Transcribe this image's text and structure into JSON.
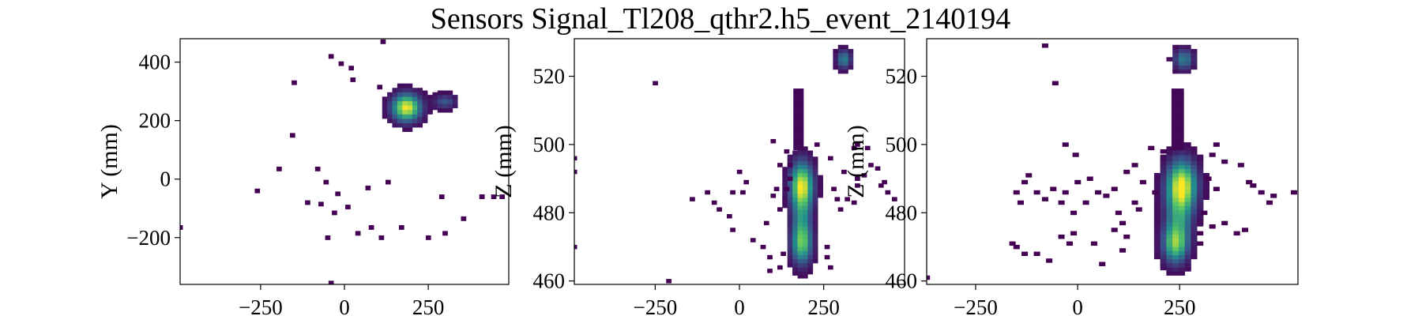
{
  "figure": {
    "title": "Sensors Signal_Tl208_qthr2.h5_event_2140194"
  },
  "colors": {
    "cmap": [
      "#440154",
      "#3b528b",
      "#21918c",
      "#5ec962",
      "#fde725"
    ],
    "frame": "#000000"
  },
  "chart_data": [
    {
      "type": "heatmap",
      "title": "",
      "xlabel": "",
      "ylabel": "Y (mm)",
      "xlim": [
        -490,
        490
      ],
      "ylim": [
        -360,
        480
      ],
      "xticks": [
        -250,
        0,
        250
      ],
      "yticks": [
        -200,
        0,
        200,
        400
      ],
      "cell_size": [
        15,
        15
      ],
      "grid": false,
      "clusters": [
        {
          "x": 185,
          "y": 245,
          "sx": 28,
          "sy": 30,
          "peak": 1.0
        },
        {
          "x": 300,
          "y": 265,
          "sx": 22,
          "sy": 16,
          "peak": 0.28
        }
      ],
      "cells": [
        [
          115,
          470
        ],
        [
          -40,
          420
        ],
        [
          -10,
          395
        ],
        [
          20,
          380
        ],
        [
          -150,
          330
        ],
        [
          25,
          340
        ],
        [
          105,
          315
        ],
        [
          -155,
          150
        ],
        [
          -260,
          -40
        ],
        [
          -195,
          35
        ],
        [
          -80,
          35
        ],
        [
          -55,
          -10
        ],
        [
          -20,
          -50
        ],
        [
          -70,
          -85
        ],
        [
          -110,
          -80
        ],
        [
          -30,
          -115
        ],
        [
          10,
          -95
        ],
        [
          70,
          -30
        ],
        [
          130,
          -10
        ],
        [
          170,
          -165
        ],
        [
          290,
          -60
        ],
        [
          355,
          -135
        ],
        [
          410,
          -60
        ],
        [
          445,
          -60
        ],
        [
          410,
          -60
        ],
        [
          470,
          -60
        ],
        [
          -490,
          -165
        ],
        [
          40,
          -185
        ],
        [
          -50,
          -200
        ],
        [
          80,
          -165
        ],
        [
          110,
          -200
        ],
        [
          250,
          -200
        ],
        [
          300,
          -185
        ],
        [
          -40,
          -355
        ]
      ]
    },
    {
      "type": "heatmap",
      "title": "",
      "xlabel": "",
      "ylabel": "Z (mm)",
      "xlim": [
        -490,
        490
      ],
      "ylim": [
        459,
        531
      ],
      "xticks": [
        -250,
        0,
        250
      ],
      "yticks": [
        460,
        480,
        500,
        520
      ],
      "cell_size": [
        15,
        1.2
      ],
      "grid": false,
      "clusters": [
        {
          "x": 185,
          "y": 488,
          "sx": 22,
          "sy": 4.5,
          "peak": 0.95
        },
        {
          "x": 185,
          "y": 471,
          "sx": 20,
          "sy": 4.0,
          "peak": 0.7
        },
        {
          "x": 185,
          "y": 479,
          "sx": 18,
          "sy": 5.0,
          "peak": 0.35
        },
        {
          "x": 310,
          "y": 525,
          "sx": 14,
          "sy": 1.8,
          "peak": 0.45
        }
      ],
      "column": {
        "x": 160,
        "width": 30,
        "y0": 499,
        "y1": 516.5
      },
      "cells": [
        [
          -250,
          518
        ],
        [
          -490,
          496
        ],
        [
          -490,
          492
        ],
        [
          -490,
          470
        ],
        [
          -210,
          460
        ],
        [
          -140,
          484
        ],
        [
          -75,
          483
        ],
        [
          -95,
          486
        ],
        [
          -60,
          481
        ],
        [
          -30,
          479
        ],
        [
          -20,
          475
        ],
        [
          40,
          472
        ],
        [
          -20,
          486
        ],
        [
          10,
          486
        ],
        [
          20,
          489
        ],
        [
          0,
          492
        ],
        [
          70,
          470
        ],
        [
          80,
          477
        ],
        [
          90,
          467
        ],
        [
          90,
          463
        ],
        [
          120,
          464
        ],
        [
          130,
          468
        ],
        [
          120,
          481
        ],
        [
          100,
          485
        ],
        [
          110,
          487
        ],
        [
          140,
          487
        ],
        [
          150,
          490
        ],
        [
          150,
          494
        ],
        [
          120,
          494
        ],
        [
          140,
          498
        ],
        [
          100,
          501
        ],
        [
          230,
          500
        ],
        [
          270,
          496
        ],
        [
          310,
          492
        ],
        [
          340,
          499
        ],
        [
          350,
          500
        ],
        [
          380,
          499
        ],
        [
          390,
          494
        ],
        [
          410,
          493
        ],
        [
          420,
          488
        ],
        [
          430,
          489
        ],
        [
          440,
          486
        ],
        [
          460,
          484
        ],
        [
          280,
          487
        ],
        [
          290,
          484
        ],
        [
          300,
          481
        ],
        [
          320,
          484
        ],
        [
          340,
          483
        ],
        [
          350,
          488
        ],
        [
          260,
          470
        ],
        [
          260,
          467
        ],
        [
          270,
          464
        ],
        [
          350,
          490
        ],
        [
          370,
          491
        ]
      ]
    },
    {
      "type": "heatmap",
      "title": "",
      "xlabel": "",
      "ylabel": "Z (mm)",
      "xlim": [
        -370,
        540
      ],
      "ylim": [
        459,
        531
      ],
      "xticks": [
        -250,
        0,
        250
      ],
      "yticks": [
        460,
        480,
        500,
        520
      ],
      "cell_size": [
        15,
        1.2
      ],
      "grid": false,
      "clusters": [
        {
          "x": 255,
          "y": 488,
          "sx": 24,
          "sy": 4.8,
          "peak": 1.0
        },
        {
          "x": 240,
          "y": 471,
          "sx": 20,
          "sy": 3.8,
          "peak": 0.75
        },
        {
          "x": 248,
          "y": 479,
          "sx": 22,
          "sy": 5.0,
          "peak": 0.4
        },
        {
          "x": 260,
          "y": 525,
          "sx": 16,
          "sy": 2.0,
          "peak": 0.42
        }
      ],
      "column": {
        "x": 230,
        "width": 30,
        "y0": 499,
        "y1": 516.5
      },
      "cells": [
        [
          -80,
          529
        ],
        [
          -55,
          518
        ],
        [
          -370,
          461
        ],
        [
          -160,
          471
        ],
        [
          -150,
          470
        ],
        [
          -130,
          468
        ],
        [
          -100,
          468
        ],
        [
          -70,
          466
        ],
        [
          -40,
          473
        ],
        [
          -20,
          471
        ],
        [
          -10,
          474
        ],
        [
          40,
          471
        ],
        [
          60,
          465
        ],
        [
          90,
          475
        ],
        [
          110,
          469
        ],
        [
          120,
          473
        ],
        [
          100,
          480
        ],
        [
          110,
          477
        ],
        [
          150,
          481
        ],
        [
          140,
          483
        ],
        [
          -150,
          486
        ],
        [
          -130,
          489
        ],
        [
          -120,
          491
        ],
        [
          -100,
          486
        ],
        [
          -80,
          484
        ],
        [
          -60,
          487
        ],
        [
          -40,
          483
        ],
        [
          -10,
          480
        ],
        [
          20,
          483
        ],
        [
          0,
          489
        ],
        [
          30,
          490
        ],
        [
          50,
          486
        ],
        [
          70,
          485
        ],
        [
          90,
          487
        ],
        [
          120,
          492
        ],
        [
          140,
          494
        ],
        [
          160,
          489
        ],
        [
          190,
          486
        ],
        [
          180,
          499
        ],
        [
          210,
          498
        ],
        [
          -140,
          483
        ],
        [
          -30,
          486
        ],
        [
          330,
          497
        ],
        [
          340,
          500
        ],
        [
          360,
          495
        ],
        [
          400,
          494
        ],
        [
          420,
          489
        ],
        [
          430,
          488
        ],
        [
          450,
          486
        ],
        [
          480,
          485
        ],
        [
          470,
          483
        ],
        [
          320,
          490
        ],
        [
          340,
          487
        ],
        [
          310,
          480
        ],
        [
          330,
          476
        ],
        [
          360,
          477
        ],
        [
          390,
          474
        ],
        [
          410,
          475
        ],
        [
          300,
          474
        ],
        [
          300,
          471
        ],
        [
          -5,
          497
        ],
        [
          -30,
          500
        ],
        [
          530,
          486
        ]
      ]
    }
  ]
}
